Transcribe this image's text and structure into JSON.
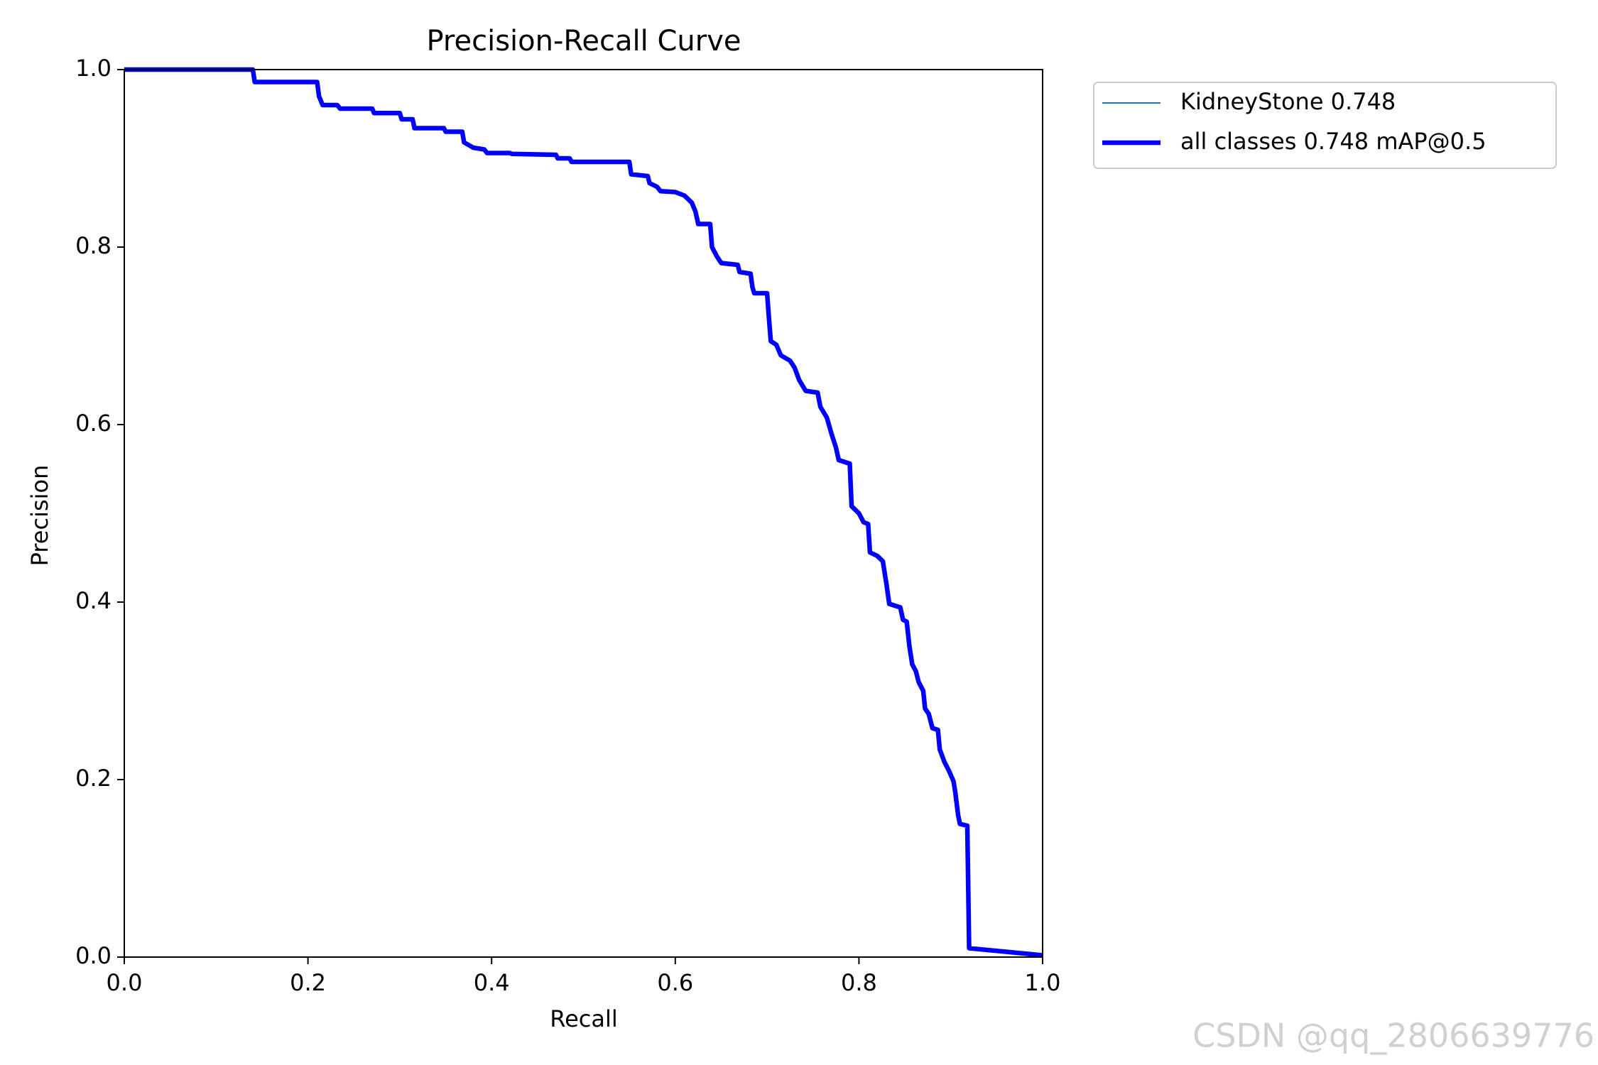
{
  "chart_data": {
    "type": "line",
    "title": "Precision-Recall Curve",
    "x_label": "Recall",
    "y_label": "Precision",
    "x": [
      0,
      0.14,
      0.142,
      0.21,
      0.212,
      0.216,
      0.232,
      0.235,
      0.27,
      0.272,
      0.3,
      0.302,
      0.314,
      0.316,
      0.348,
      0.35,
      0.368,
      0.37,
      0.38,
      0.392,
      0.395,
      0.42,
      0.422,
      0.47,
      0.472,
      0.485,
      0.487,
      0.55,
      0.552,
      0.57,
      0.572,
      0.58,
      0.584,
      0.6,
      0.61,
      0.618,
      0.622,
      0.625,
      0.638,
      0.64,
      0.645,
      0.65,
      0.668,
      0.67,
      0.682,
      0.684,
      0.686,
      0.7,
      0.702,
      0.704,
      0.71,
      0.715,
      0.725,
      0.73,
      0.735,
      0.742,
      0.755,
      0.758,
      0.765,
      0.77,
      0.775,
      0.778,
      0.79,
      0.792,
      0.8,
      0.805,
      0.81,
      0.812,
      0.82,
      0.826,
      0.83,
      0.833,
      0.845,
      0.848,
      0.852,
      0.855,
      0.858,
      0.862,
      0.865,
      0.87,
      0.872,
      0.876,
      0.88,
      0.886,
      0.888,
      0.893,
      0.898,
      0.903,
      0.905,
      0.908,
      0.91,
      0.918,
      0.92,
      1.0
    ],
    "series": [
      {
        "name": "KidneyStone 0.748",
        "color": "#1f77b4",
        "width": 2,
        "values": [
          1,
          1,
          0.986,
          0.986,
          0.97,
          0.96,
          0.96,
          0.956,
          0.956,
          0.951,
          0.951,
          0.944,
          0.944,
          0.934,
          0.934,
          0.93,
          0.93,
          0.918,
          0.912,
          0.91,
          0.906,
          0.906,
          0.905,
          0.904,
          0.9,
          0.9,
          0.896,
          0.896,
          0.882,
          0.88,
          0.872,
          0.868,
          0.863,
          0.862,
          0.858,
          0.85,
          0.84,
          0.826,
          0.826,
          0.8,
          0.79,
          0.782,
          0.78,
          0.772,
          0.77,
          0.755,
          0.748,
          0.748,
          0.72,
          0.694,
          0.69,
          0.678,
          0.672,
          0.664,
          0.65,
          0.638,
          0.636,
          0.62,
          0.608,
          0.59,
          0.574,
          0.56,
          0.556,
          0.508,
          0.5,
          0.49,
          0.488,
          0.456,
          0.452,
          0.446,
          0.42,
          0.398,
          0.394,
          0.38,
          0.378,
          0.35,
          0.33,
          0.322,
          0.31,
          0.3,
          0.28,
          0.274,
          0.258,
          0.256,
          0.234,
          0.22,
          0.21,
          0.198,
          0.185,
          0.16,
          0.15,
          0.148,
          0.01,
          0.002
        ]
      },
      {
        "name": "all classes 0.748 mAP@0.5",
        "color": "#0000ff",
        "width": 6.5,
        "values": [
          1,
          1,
          0.986,
          0.986,
          0.97,
          0.96,
          0.96,
          0.956,
          0.956,
          0.951,
          0.951,
          0.944,
          0.944,
          0.934,
          0.934,
          0.93,
          0.93,
          0.918,
          0.912,
          0.91,
          0.906,
          0.906,
          0.905,
          0.904,
          0.9,
          0.9,
          0.896,
          0.896,
          0.882,
          0.88,
          0.872,
          0.868,
          0.863,
          0.862,
          0.858,
          0.85,
          0.84,
          0.826,
          0.826,
          0.8,
          0.79,
          0.782,
          0.78,
          0.772,
          0.77,
          0.755,
          0.748,
          0.748,
          0.72,
          0.694,
          0.69,
          0.678,
          0.672,
          0.664,
          0.65,
          0.638,
          0.636,
          0.62,
          0.608,
          0.59,
          0.574,
          0.56,
          0.556,
          0.508,
          0.5,
          0.49,
          0.488,
          0.456,
          0.452,
          0.446,
          0.42,
          0.398,
          0.394,
          0.38,
          0.378,
          0.35,
          0.33,
          0.322,
          0.31,
          0.3,
          0.28,
          0.274,
          0.258,
          0.256,
          0.234,
          0.22,
          0.21,
          0.198,
          0.185,
          0.16,
          0.15,
          0.148,
          0.01,
          0.002
        ]
      }
    ],
    "xlim": [
      0,
      1
    ],
    "ylim": [
      0,
      1
    ],
    "xticks": [
      {
        "value": 0,
        "label": "0.0"
      },
      0.2,
      0.4,
      0.6,
      0.8,
      {
        "value": 1,
        "label": "1.0"
      }
    ],
    "yticks": [
      {
        "value": 0,
        "label": "0.0"
      },
      0.2,
      0.4,
      0.6,
      0.8,
      {
        "value": 1,
        "label": "1.0"
      }
    ],
    "watermark": "CSDN @qq_2806639776"
  }
}
